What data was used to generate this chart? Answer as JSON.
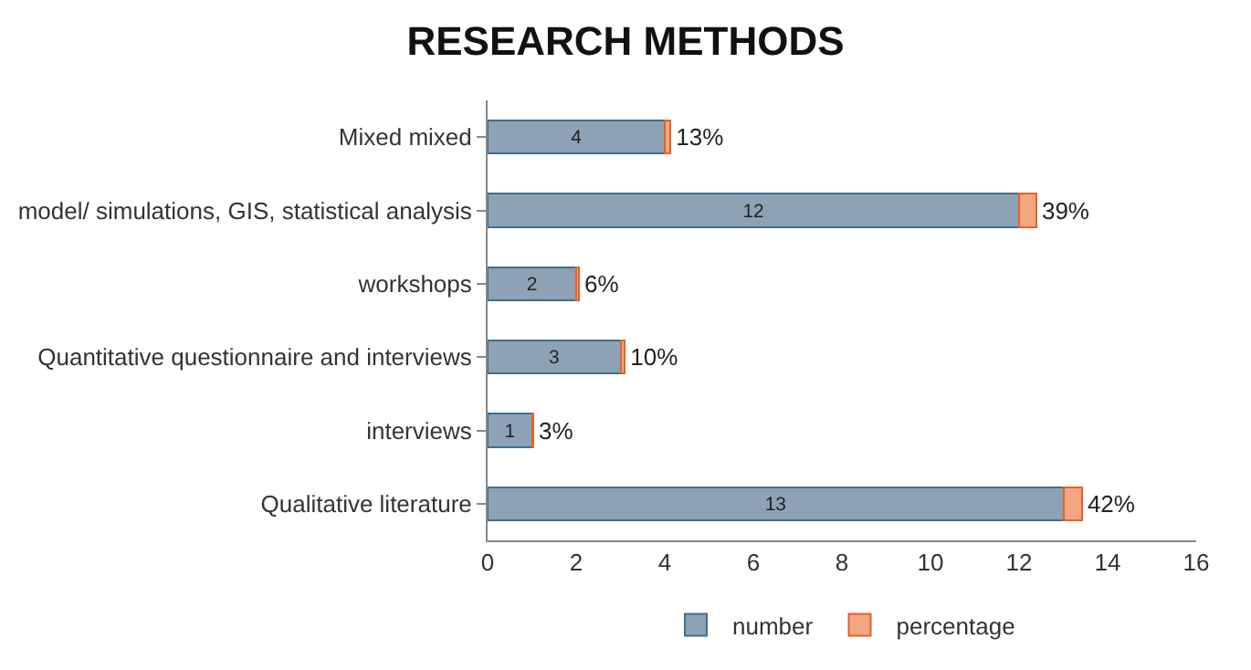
{
  "chart_data": {
    "type": "bar",
    "title": "RESEARCH METHODS",
    "orientation": "horizontal",
    "stacked": true,
    "categories": [
      "Mixed mixed",
      "model/ simulations, GIS, statistical analysis",
      "workshops",
      "Quantitative questionnaire and interviews",
      "interviews",
      "Qualitative literature"
    ],
    "series": [
      {
        "name": "number",
        "color": "#8da2b5",
        "values": [
          4,
          12,
          2,
          3,
          1,
          13
        ],
        "value_labels": [
          "4",
          "12",
          "2",
          "3",
          "1",
          "13"
        ]
      },
      {
        "name": "percentage",
        "color": "#f4a582",
        "values": [
          0.13,
          0.39,
          0.06,
          0.1,
          0.03,
          0.42
        ],
        "value_labels": [
          "13%",
          "39%",
          "6%",
          "10%",
          "3%",
          "42%"
        ]
      }
    ],
    "xlim": [
      0,
      16
    ],
    "xticks": [
      0,
      2,
      4,
      6,
      8,
      10,
      12,
      14,
      16
    ],
    "legend": "bottom"
  }
}
